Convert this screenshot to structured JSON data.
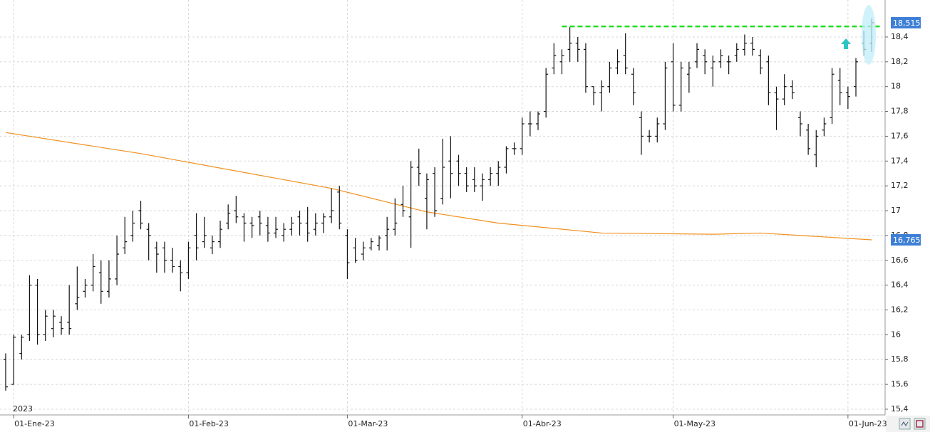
{
  "chart_data": {
    "type": "ohlc",
    "year_label": "2023",
    "categories": [
      null,
      "01-Ene-23",
      null,
      null,
      null,
      null,
      null,
      null,
      null,
      null,
      null,
      null,
      null,
      null,
      null,
      null,
      null,
      null,
      null,
      null,
      null,
      null,
      null,
      "01-Feb-23",
      null,
      null,
      null,
      null,
      null,
      null,
      null,
      null,
      null,
      null,
      null,
      null,
      null,
      null,
      null,
      null,
      null,
      null,
      null,
      "01-Mar-23",
      null,
      null,
      null,
      null,
      null,
      null,
      null,
      null,
      null,
      null,
      null,
      null,
      null,
      null,
      null,
      null,
      null,
      null,
      null,
      null,
      null,
      "01-Abr-23",
      null,
      null,
      null,
      null,
      null,
      null,
      null,
      null,
      null,
      null,
      null,
      null,
      null,
      null,
      null,
      null,
      null,
      null,
      "01-May-23",
      null,
      null,
      null,
      null,
      null,
      null,
      null,
      null,
      null,
      null,
      null,
      null,
      null,
      null,
      null,
      null,
      null,
      null,
      null,
      null,
      null,
      "01-Jun-23",
      null,
      null,
      null
    ],
    "ohlc": {
      "color": "#111111",
      "open": [
        15.8,
        15.6,
        15.85,
        16.0,
        16.4,
        16.0,
        16.05,
        16.1,
        16.1,
        16.25,
        16.35,
        16.4,
        16.5,
        16.35,
        16.45,
        16.7,
        16.8,
        17.0,
        16.85,
        16.7,
        16.7,
        16.6,
        16.55,
        16.5,
        16.8,
        16.75,
        16.7,
        16.75,
        16.9,
        17.0,
        16.95,
        16.9,
        16.95,
        16.88,
        16.82,
        16.8,
        16.85,
        16.95,
        16.9,
        16.85,
        16.9,
        16.95,
        17.15,
        16.8,
        16.7,
        16.65,
        16.7,
        16.72,
        16.8,
        16.85,
        17.05,
        16.95,
        17.35,
        17.1,
        17.3,
        17.1,
        17.4,
        17.4,
        17.3,
        17.25,
        17.2,
        17.25,
        17.3,
        17.35,
        17.5,
        17.5,
        17.7,
        17.7,
        17.8,
        18.15,
        18.2,
        18.3,
        18.35,
        18.3,
        18.0,
        17.95,
        18.0,
        18.15,
        18.25,
        18.1,
        17.75,
        17.6,
        17.6,
        17.7,
        18.2,
        17.85,
        18.1,
        18.2,
        18.25,
        18.15,
        18.2,
        18.2,
        18.25,
        18.3,
        18.35,
        18.25,
        18.2,
        17.95,
        17.9,
        18.0,
        17.75,
        17.65,
        17.45,
        17.65,
        17.75,
        18.05,
        17.95,
        18.0,
        18.35,
        18.35
      ],
      "high": [
        15.85,
        16.0,
        16.0,
        16.48,
        16.45,
        16.2,
        16.2,
        16.15,
        16.4,
        16.55,
        16.45,
        16.65,
        16.6,
        16.6,
        16.8,
        16.95,
        17.0,
        17.08,
        16.9,
        16.75,
        16.75,
        16.7,
        16.6,
        16.75,
        16.98,
        16.95,
        16.8,
        16.92,
        17.05,
        17.12,
        16.98,
        16.95,
        17.0,
        16.95,
        16.95,
        16.9,
        16.95,
        17.0,
        17.03,
        16.98,
        16.98,
        17.18,
        17.2,
        16.85,
        16.78,
        16.75,
        16.78,
        16.8,
        16.95,
        17.1,
        17.2,
        17.4,
        17.5,
        17.3,
        17.35,
        17.58,
        17.6,
        17.45,
        17.35,
        17.35,
        17.3,
        17.35,
        17.4,
        17.52,
        17.55,
        17.75,
        17.8,
        17.8,
        18.15,
        18.35,
        18.3,
        18.48,
        18.4,
        18.35,
        18.0,
        18.05,
        18.2,
        18.3,
        18.43,
        18.15,
        17.8,
        17.65,
        17.75,
        18.2,
        18.35,
        18.2,
        18.2,
        18.35,
        18.3,
        18.25,
        18.3,
        18.25,
        18.35,
        18.42,
        18.4,
        18.3,
        18.25,
        18.0,
        18.1,
        18.05,
        17.8,
        17.7,
        17.65,
        17.75,
        18.15,
        18.15,
        18.0,
        18.23,
        18.45,
        18.55
      ],
      "low": [
        15.55,
        15.6,
        15.8,
        15.95,
        15.92,
        15.95,
        15.98,
        16.0,
        16.0,
        16.2,
        16.3,
        16.35,
        16.25,
        16.3,
        16.4,
        16.65,
        16.75,
        16.85,
        16.6,
        16.5,
        16.5,
        16.5,
        16.35,
        16.45,
        16.6,
        16.7,
        16.65,
        16.7,
        16.85,
        16.9,
        16.75,
        16.78,
        16.8,
        16.75,
        16.78,
        16.75,
        16.8,
        16.8,
        16.75,
        16.8,
        16.82,
        16.9,
        16.85,
        16.45,
        16.58,
        16.6,
        16.68,
        16.68,
        16.68,
        16.8,
        16.95,
        16.7,
        17.2,
        16.85,
        16.95,
        17.05,
        17.1,
        17.2,
        17.15,
        17.15,
        17.08,
        17.2,
        17.2,
        17.3,
        17.45,
        17.45,
        17.6,
        17.65,
        17.75,
        18.1,
        18.1,
        18.2,
        18.2,
        17.95,
        17.85,
        17.8,
        17.95,
        18.1,
        18.1,
        17.85,
        17.45,
        17.55,
        17.55,
        17.65,
        17.8,
        17.8,
        17.95,
        18.15,
        18.1,
        18.0,
        18.15,
        18.1,
        18.2,
        18.25,
        18.25,
        18.1,
        17.85,
        17.65,
        17.85,
        17.9,
        17.6,
        17.45,
        17.35,
        17.6,
        17.7,
        17.85,
        17.82,
        17.92,
        18.25,
        18.28
      ],
      "close": [
        15.58,
        15.98,
        15.98,
        16.4,
        16.0,
        16.15,
        16.15,
        16.05,
        16.05,
        16.3,
        16.4,
        16.55,
        16.35,
        16.45,
        16.65,
        16.75,
        16.9,
        16.9,
        16.8,
        16.65,
        16.6,
        16.55,
        16.5,
        16.7,
        16.7,
        16.8,
        16.75,
        16.85,
        16.98,
        16.95,
        16.9,
        16.88,
        16.9,
        16.82,
        16.85,
        16.85,
        16.9,
        16.9,
        16.82,
        16.9,
        16.95,
        17.0,
        16.9,
        16.58,
        16.6,
        16.7,
        16.75,
        16.78,
        16.85,
        16.9,
        17.0,
        17.35,
        17.3,
        17.25,
        17.0,
        17.35,
        17.3,
        17.3,
        17.2,
        17.2,
        17.25,
        17.3,
        17.35,
        17.5,
        17.5,
        17.7,
        17.7,
        17.78,
        18.1,
        18.25,
        18.25,
        18.35,
        18.3,
        18.0,
        17.95,
        18.0,
        18.15,
        18.2,
        18.15,
        17.95,
        17.6,
        17.6,
        17.7,
        18.15,
        17.85,
        18.15,
        18.15,
        18.3,
        18.2,
        18.2,
        18.25,
        18.2,
        18.3,
        18.35,
        18.3,
        18.15,
        17.95,
        17.9,
        18.0,
        17.95,
        17.7,
        17.5,
        17.6,
        17.7,
        18.1,
        17.95,
        17.92,
        18.2,
        18.3,
        18.515
      ]
    },
    "moving_average": {
      "color": "#f0901e",
      "x": [
        0,
        17,
        35,
        41,
        53,
        62,
        75,
        89,
        95,
        109
      ],
      "values": [
        17.63,
        17.46,
        17.25,
        17.18,
        16.99,
        16.9,
        16.82,
        16.81,
        16.82,
        16.765
      ]
    },
    "resistance": {
      "value": 18.485,
      "from": 70,
      "to": 110,
      "color": "#22dd22"
    },
    "price_labels": [
      {
        "value": 18.515,
        "label": "18,515",
        "color": "#3d7fd6"
      },
      {
        "value": 16.765,
        "label": "16,765",
        "color": "#3d7fd6"
      }
    ],
    "ylim": [
      15.354,
      18.698
    ],
    "yticks": [
      {
        "value": 15.4,
        "label": "15,4"
      },
      {
        "value": 15.6,
        "label": "15,6"
      },
      {
        "value": 15.8,
        "label": "15,8"
      },
      16,
      {
        "value": 16.2,
        "label": "16,2"
      },
      {
        "value": 16.4,
        "label": "16,4"
      },
      {
        "value": 16.6,
        "label": "16,6"
      },
      {
        "value": 16.8,
        "label": "16,8"
      },
      17,
      {
        "value": 17.2,
        "label": "17,2"
      },
      {
        "value": 17.4,
        "label": "17,4"
      },
      {
        "value": 17.6,
        "label": "17,6"
      },
      {
        "value": 17.8,
        "label": "17,8"
      },
      18,
      {
        "value": 18.2,
        "label": "18,2"
      },
      {
        "value": 18.4,
        "label": "18,4"
      }
    ],
    "grid": true
  }
}
